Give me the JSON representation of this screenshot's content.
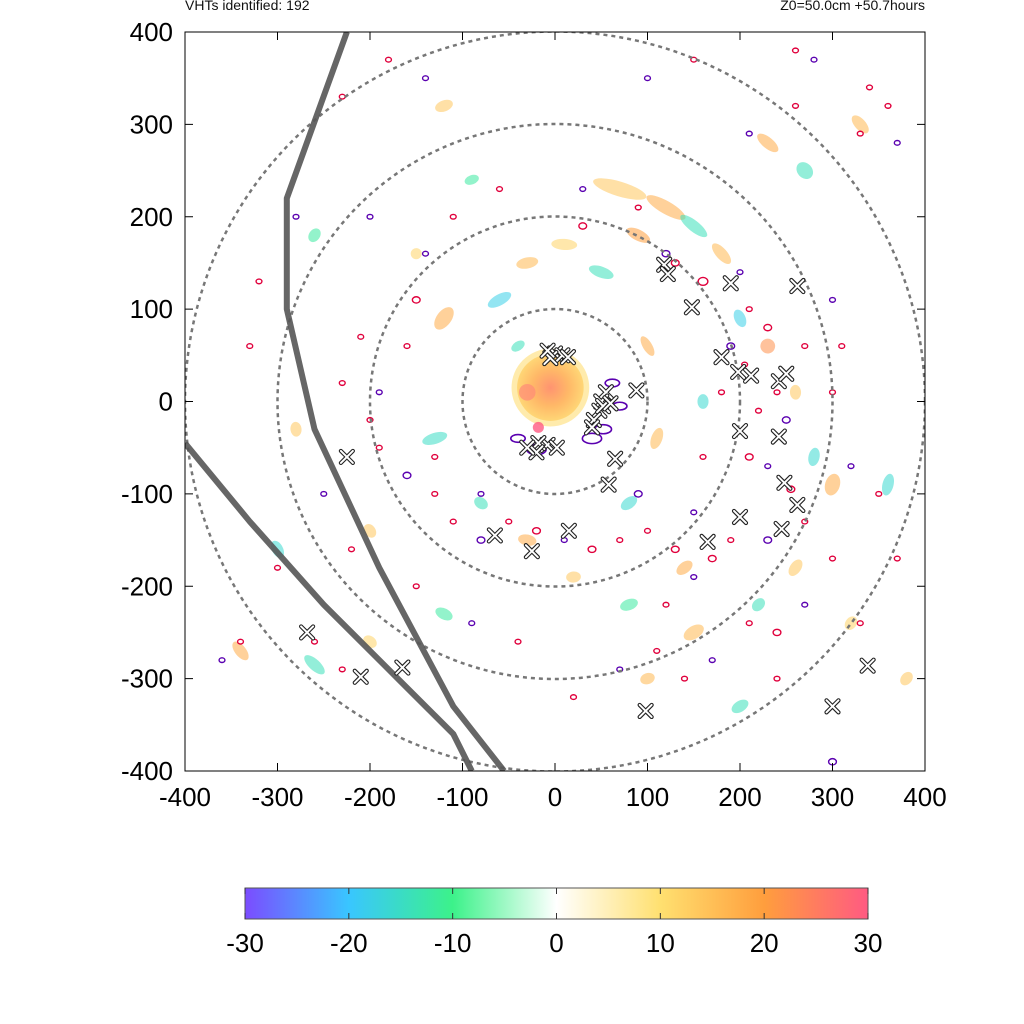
{
  "header": {
    "left_text": "VHTs identified: 192",
    "right_text": "Z0=50.0cm  +50.7hours"
  },
  "chart_data": {
    "type": "heatmap",
    "title": "",
    "xlabel": "",
    "ylabel": "",
    "xlim": [
      -400,
      400
    ],
    "ylim": [
      -400,
      400
    ],
    "x_ticks": [
      "-400",
      "-300",
      "-200",
      "-100",
      "0",
      "100",
      "200",
      "300",
      "400"
    ],
    "y_ticks": [
      "400",
      "300",
      "200",
      "100",
      "0",
      "-100",
      "-200",
      "-300",
      "-400"
    ],
    "x_tick_values": [
      -400,
      -300,
      -200,
      -100,
      0,
      100,
      200,
      300,
      400
    ],
    "y_tick_values": [
      400,
      300,
      200,
      100,
      0,
      -100,
      -200,
      -300,
      -400
    ],
    "range_rings": [
      100,
      200,
      300,
      400
    ],
    "colorbar": {
      "min": -30,
      "max": 30,
      "ticks": [
        "-30",
        "-20",
        "-10",
        "0",
        "10",
        "20",
        "30"
      ],
      "tick_values": [
        -30,
        -20,
        -10,
        0,
        10,
        20,
        30
      ],
      "stops": [
        "#7b4cff",
        "#39c6ff",
        "#3cf28a",
        "#ffffff",
        "#ffe070",
        "#ff9e3d",
        "#ff5a82"
      ]
    },
    "colors": {
      "ring": "#777777",
      "track": "#555555",
      "contour_pos": "#e0003c",
      "contour_neg": "#5a00b0",
      "marker_fill": "#ffffff",
      "marker_stroke": "#222222"
    },
    "vht_count": 192,
    "core": {
      "x": -5,
      "y": 15,
      "value": 22
    },
    "tracks": [
      {
        "name": "track-a",
        "points": [
          [
            -225,
            400
          ],
          [
            -290,
            220
          ],
          [
            -290,
            100
          ],
          [
            -260,
            -30
          ],
          [
            -190,
            -180
          ],
          [
            -110,
            -330
          ],
          [
            -55,
            -400
          ]
        ]
      },
      {
        "name": "track-b",
        "points": [
          [
            -400,
            -45
          ],
          [
            -330,
            -130
          ],
          [
            -250,
            -220
          ],
          [
            -170,
            -300
          ],
          [
            -110,
            -360
          ],
          [
            -90,
            -400
          ]
        ]
      }
    ],
    "vht_markers": [
      [
        0,
        52
      ],
      [
        8,
        50
      ],
      [
        14,
        48
      ],
      [
        -5,
        47
      ],
      [
        -8,
        55
      ],
      [
        55,
        10
      ],
      [
        50,
        0
      ],
      [
        48,
        -10
      ],
      [
        42,
        -20
      ],
      [
        40,
        -28
      ],
      [
        52,
        -5
      ],
      [
        60,
        -2
      ],
      [
        -8,
        -47
      ],
      [
        -18,
        -45
      ],
      [
        2,
        -50
      ],
      [
        -20,
        -55
      ],
      [
        -30,
        -50
      ],
      [
        88,
        12
      ],
      [
        65,
        -62
      ],
      [
        58,
        -90
      ],
      [
        15,
        -140
      ],
      [
        -25,
        -162
      ],
      [
        -65,
        -145
      ],
      [
        118,
        148
      ],
      [
        122,
        138
      ],
      [
        148,
        102
      ],
      [
        190,
        128
      ],
      [
        262,
        125
      ],
      [
        180,
        48
      ],
      [
        198,
        32
      ],
      [
        212,
        28
      ],
      [
        242,
        22
      ],
      [
        250,
        30
      ],
      [
        200,
        -32
      ],
      [
        242,
        -38
      ],
      [
        248,
        -88
      ],
      [
        262,
        -112
      ],
      [
        200,
        -125
      ],
      [
        245,
        -138
      ],
      [
        165,
        -152
      ],
      [
        -225,
        -60
      ],
      [
        -268,
        -250
      ],
      [
        -210,
        -298
      ],
      [
        -165,
        -288
      ],
      [
        98,
        -335
      ],
      [
        300,
        -330
      ],
      [
        338,
        -286
      ]
    ],
    "blobs": [
      [
        -120,
        90,
        14,
        8,
        18
      ],
      [
        -130,
        -40,
        6,
        14,
        -15
      ],
      [
        -150,
        160,
        6,
        6,
        12
      ],
      [
        -90,
        240,
        8,
        5,
        -12
      ],
      [
        70,
        230,
        30,
        8,
        14
      ],
      [
        120,
        210,
        24,
        7,
        18
      ],
      [
        150,
        190,
        18,
        6,
        -14
      ],
      [
        90,
        180,
        14,
        6,
        20
      ],
      [
        180,
        160,
        14,
        6,
        16
      ],
      [
        200,
        90,
        10,
        6,
        -18
      ],
      [
        230,
        60,
        8,
        8,
        22
      ],
      [
        260,
        10,
        8,
        6,
        14
      ],
      [
        280,
        -60,
        10,
        6,
        -16
      ],
      [
        300,
        -90,
        12,
        8,
        18
      ],
      [
        260,
        -180,
        10,
        6,
        14
      ],
      [
        220,
        -220,
        8,
        6,
        -14
      ],
      [
        150,
        -250,
        12,
        7,
        16
      ],
      [
        80,
        -220,
        10,
        6,
        -12
      ],
      [
        20,
        -190,
        8,
        6,
        14
      ],
      [
        -30,
        -150,
        10,
        6,
        18
      ],
      [
        -80,
        -110,
        8,
        6,
        -14
      ],
      [
        -60,
        110,
        14,
        6,
        -18
      ],
      [
        -30,
        150,
        12,
        6,
        16
      ],
      [
        10,
        170,
        14,
        6,
        12
      ],
      [
        50,
        140,
        14,
        6,
        -14
      ],
      [
        100,
        60,
        12,
        5,
        18
      ],
      [
        110,
        -40,
        12,
        6,
        16
      ],
      [
        80,
        -110,
        10,
        6,
        -16
      ],
      [
        -120,
        320,
        10,
        6,
        14
      ],
      [
        230,
        280,
        14,
        6,
        18
      ],
      [
        270,
        250,
        10,
        8,
        -14
      ],
      [
        330,
        300,
        12,
        6,
        16
      ],
      [
        -260,
        180,
        8,
        6,
        -12
      ],
      [
        -280,
        -30,
        8,
        6,
        14
      ],
      [
        -300,
        -160,
        10,
        6,
        -16
      ],
      [
        -340,
        -270,
        12,
        6,
        18
      ],
      [
        -260,
        -285,
        14,
        6,
        -14
      ],
      [
        -200,
        -260,
        8,
        6,
        12
      ],
      [
        360,
        -90,
        12,
        6,
        -16
      ],
      [
        380,
        -300,
        8,
        6,
        14
      ],
      [
        320,
        -240,
        8,
        6,
        12
      ],
      [
        200,
        -330,
        10,
        6,
        -14
      ],
      [
        100,
        -300,
        8,
        6,
        16
      ],
      [
        -120,
        -230,
        10,
        6,
        -12
      ],
      [
        -200,
        -140,
        8,
        6,
        14
      ],
      [
        160,
        0,
        8,
        6,
        -16
      ],
      [
        140,
        -180,
        10,
        6,
        18
      ],
      [
        -40,
        60,
        8,
        5,
        -14
      ]
    ],
    "contours": [
      [
        120,
        160,
        4
      ],
      [
        130,
        150,
        4
      ],
      [
        160,
        130,
        5
      ],
      [
        200,
        140,
        3
      ],
      [
        210,
        100,
        3
      ],
      [
        230,
        80,
        4
      ],
      [
        190,
        60,
        4
      ],
      [
        205,
        40,
        3
      ],
      [
        240,
        10,
        3
      ],
      [
        250,
        -20,
        4
      ],
      [
        220,
        -10,
        3
      ],
      [
        210,
        -60,
        4
      ],
      [
        230,
        -70,
        3
      ],
      [
        255,
        -95,
        4
      ],
      [
        270,
        -130,
        3
      ],
      [
        230,
        -150,
        4
      ],
      [
        190,
        -150,
        3
      ],
      [
        170,
        -170,
        4
      ],
      [
        150,
        -190,
        3
      ],
      [
        130,
        -160,
        4
      ],
      [
        100,
        -140,
        3
      ],
      [
        90,
        -100,
        4
      ],
      [
        70,
        -150,
        3
      ],
      [
        40,
        -160,
        4
      ],
      [
        10,
        -150,
        3
      ],
      [
        -20,
        -140,
        4
      ],
      [
        -50,
        -130,
        3
      ],
      [
        -80,
        -150,
        4
      ],
      [
        -110,
        -130,
        3
      ],
      [
        -130,
        -100,
        3
      ],
      [
        -160,
        -80,
        4
      ],
      [
        -190,
        -50,
        3
      ],
      [
        -200,
        -20,
        3
      ],
      [
        -190,
        10,
        3
      ],
      [
        -160,
        60,
        3
      ],
      [
        -150,
        110,
        4
      ],
      [
        -140,
        160,
        3
      ],
      [
        -110,
        200,
        3
      ],
      [
        -60,
        230,
        3
      ],
      [
        30,
        230,
        3
      ],
      [
        90,
        210,
        3
      ],
      [
        30,
        190,
        4
      ],
      [
        300,
        110,
        3
      ],
      [
        310,
        60,
        3
      ],
      [
        300,
        10,
        3
      ],
      [
        320,
        -70,
        3
      ],
      [
        350,
        -100,
        3
      ],
      [
        300,
        -170,
        3
      ],
      [
        270,
        -220,
        3
      ],
      [
        240,
        -250,
        4
      ],
      [
        210,
        -240,
        3
      ],
      [
        170,
        -280,
        3
      ],
      [
        140,
        -300,
        3
      ],
      [
        110,
        -270,
        3
      ],
      [
        70,
        -290,
        3
      ],
      [
        20,
        -320,
        3
      ],
      [
        -40,
        -260,
        3
      ],
      [
        -90,
        -240,
        3
      ],
      [
        -150,
        -200,
        3
      ],
      [
        -220,
        -160,
        3
      ],
      [
        -250,
        -100,
        3
      ],
      [
        -230,
        20,
        3
      ],
      [
        -210,
        70,
        3
      ],
      [
        -200,
        200,
        3
      ],
      [
        -300,
        -180,
        3
      ],
      [
        -340,
        -260,
        3
      ],
      [
        -360,
        -280,
        3
      ],
      [
        -260,
        -260,
        3
      ],
      [
        -230,
        -290,
        3
      ],
      [
        100,
        350,
        3
      ],
      [
        150,
        370,
        3
      ],
      [
        260,
        380,
        3
      ],
      [
        280,
        370,
        3
      ],
      [
        340,
        340,
        3
      ],
      [
        360,
        320,
        3
      ],
      [
        370,
        280,
        3
      ],
      [
        330,
        290,
        3
      ],
      [
        260,
        320,
        3
      ],
      [
        300,
        -390,
        4
      ],
      [
        330,
        -240,
        3
      ],
      [
        370,
        -170,
        3
      ],
      [
        -140,
        350,
        3
      ],
      [
        -180,
        370,
        3
      ],
      [
        -230,
        330,
        3
      ],
      [
        -280,
        200,
        3
      ],
      [
        -320,
        130,
        3
      ],
      [
        -330,
        60,
        3
      ],
      [
        -80,
        -100,
        3
      ],
      [
        -130,
        -60,
        3
      ],
      [
        160,
        -60,
        3
      ],
      [
        150,
        -120,
        3
      ],
      [
        120,
        -220,
        3
      ],
      [
        240,
        -300,
        3
      ],
      [
        210,
        290,
        3
      ],
      [
        270,
        60,
        3
      ],
      [
        180,
        10,
        3
      ]
    ]
  }
}
